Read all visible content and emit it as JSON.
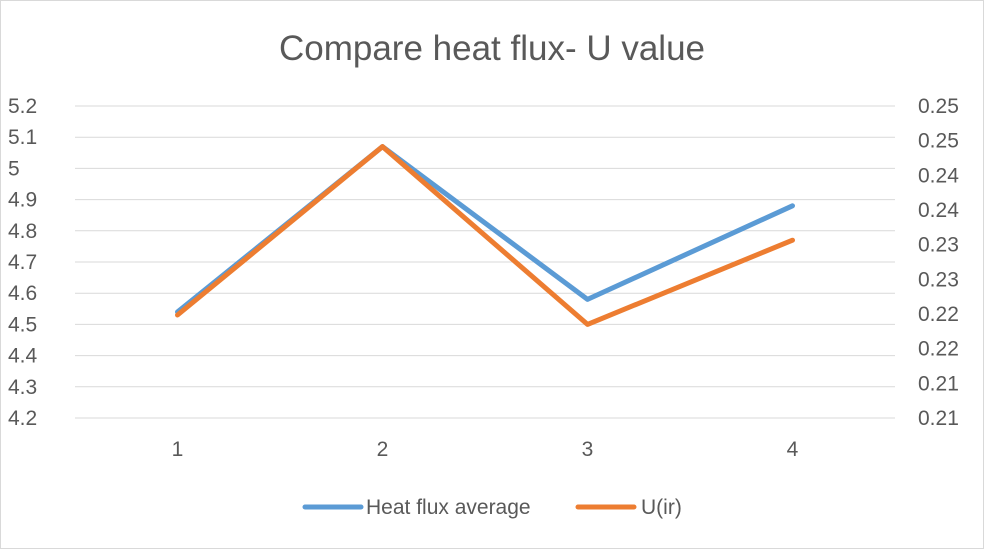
{
  "chart_data": {
    "type": "line",
    "title": "Compare heat flux- U value",
    "xlabel": "",
    "ylabel": "",
    "categories": [
      "1",
      "2",
      "3",
      "4"
    ],
    "y_left": {
      "ylim": [
        4.2,
        5.2
      ],
      "ticks": [
        "5.2",
        "5.1",
        "5",
        "4.9",
        "4.8",
        "4.7",
        "4.6",
        "4.5",
        "4.4",
        "4.3",
        "4.2"
      ]
    },
    "y_right": {
      "ylim": [
        0.205,
        0.255
      ],
      "ticks": [
        "0.25",
        "0.25",
        "0.24",
        "0.24",
        "0.23",
        "0.23",
        "0.22",
        "0.22",
        "0.21",
        "0.21"
      ]
    },
    "series": [
      {
        "name": "Heat flux average",
        "axis": "left",
        "color": "#5b9bd5",
        "values": [
          4.54,
          5.07,
          4.58,
          4.88
        ]
      },
      {
        "name": "U(ir)",
        "axis": "right",
        "color": "#ed7d31",
        "values": [
          0.2215,
          0.2485,
          0.22,
          0.2335
        ]
      }
    ],
    "grid": true,
    "legend": "bottom"
  }
}
